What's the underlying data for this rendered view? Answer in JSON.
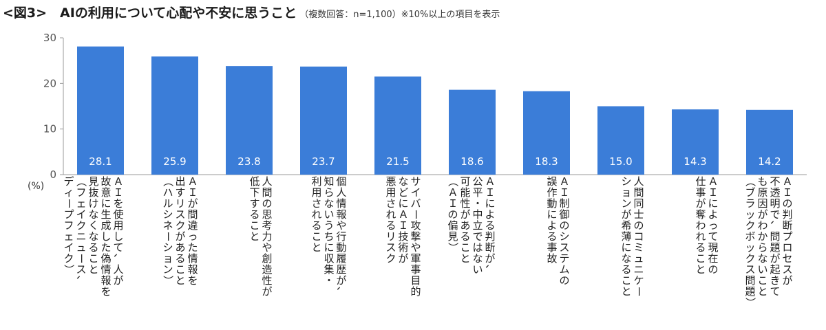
{
  "title": "<図3>　AIの利用について心配や不安に思うこと",
  "subtitle": "（複数回答：n=1,100）※10%以上の項目を表示",
  "colors": {
    "bar": "#3b7dd8",
    "axis": "#999999",
    "label": "#ffffff"
  },
  "chart_data": {
    "type": "bar",
    "ylabel": "(%)",
    "ylim": [
      0,
      30
    ],
    "yticks": [
      "0",
      "10",
      "20",
      "30"
    ],
    "grid": false,
    "categories": [
      [
        "ＡＩを使用して、人が",
        "故意に生成した偽情報を",
        "見抜けなくなること",
        "（フェイクニュース、",
        "ディープフェイク）"
      ],
      [
        "ＡＩが間違った情報を",
        "出すリスクがあること",
        "（ハルシネーション）"
      ],
      [
        "人間の思考力や創造性が",
        "低下すること"
      ],
      [
        "個人情報や行動履歴が、",
        "知らないうちに収集・",
        "利用されること"
      ],
      [
        "サイバー攻撃や軍事目的",
        "などにＡＩ技術が",
        "悪用されるリスク"
      ],
      [
        "ＡＩによる判断が、",
        "公平・中立ではない",
        "可能性があること",
        "（ＡＩの偏見）"
      ],
      [
        "ＡＩ制御のシステムの",
        "誤作動による事故"
      ],
      [
        "人間同士のコミュニケー",
        "ションが希薄になること"
      ],
      [
        "ＡＩによって現在の",
        "仕事が奪われること"
      ],
      [
        "ＡＩの判断プロセスが",
        "不透明で、問題が起きて",
        "も原因がわからないこと",
        "（ブラックボックス問題）"
      ]
    ],
    "values": [
      28.1,
      25.9,
      23.8,
      23.7,
      21.5,
      18.6,
      18.3,
      15.0,
      14.3,
      14.2
    ],
    "value_labels": [
      "28.1",
      "25.9",
      "23.8",
      "23.7",
      "21.5",
      "18.6",
      "18.3",
      "15.0",
      "14.3",
      "14.2"
    ]
  }
}
